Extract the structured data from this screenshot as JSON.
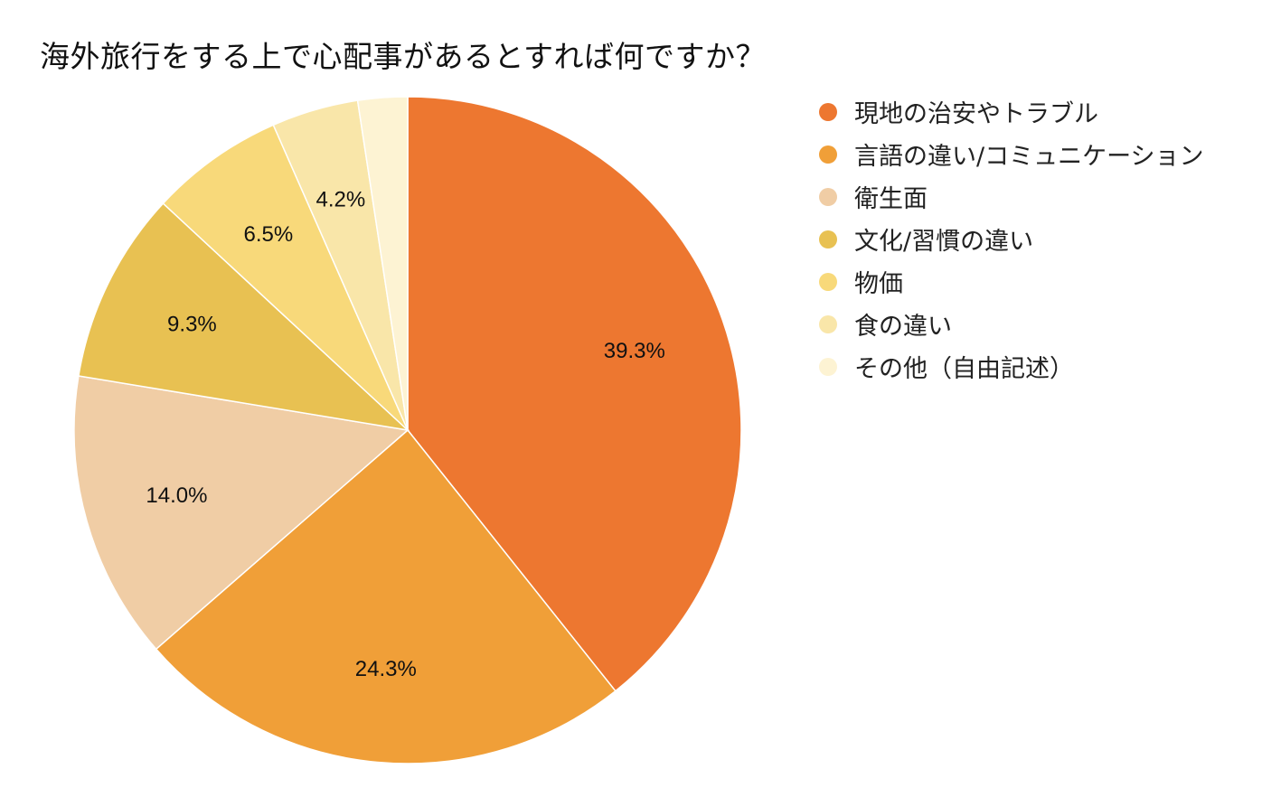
{
  "chart_data": {
    "type": "pie",
    "title": "海外旅行をする上で心配事があるとすれば何ですか？",
    "legend_position": "right",
    "slices": [
      {
        "name": "現地の治安やトラブル",
        "value": 39.3,
        "label": "39.3%",
        "color": "#ED7730"
      },
      {
        "name": "言語の違い/コミュニケーション",
        "value": 24.3,
        "label": "24.3%",
        "color": "#F09F38"
      },
      {
        "name": "衛生面",
        "value": 14.0,
        "label": "14.0%",
        "color": "#F0CDA5"
      },
      {
        "name": "文化/習慣の違い",
        "value": 9.3,
        "label": "9.3%",
        "color": "#E8C152"
      },
      {
        "name": "物価",
        "value": 6.5,
        "label": "6.5%",
        "color": "#F8D97A"
      },
      {
        "name": "食の違い",
        "value": 4.2,
        "label": "4.2%",
        "color": "#F9E6A9"
      },
      {
        "name": "その他（自由記述）",
        "value": 2.4,
        "label": "",
        "color": "#FDF3D3"
      }
    ]
  }
}
